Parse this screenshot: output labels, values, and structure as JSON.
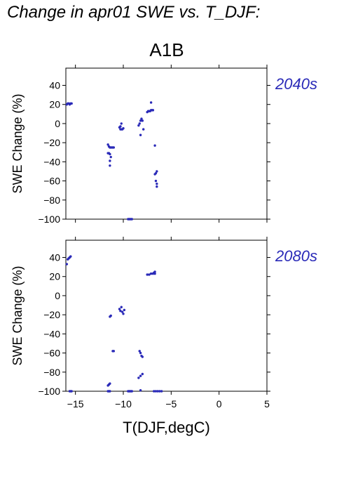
{
  "figure": {
    "title": "Change in apr01 SWE vs. T_DJF:",
    "scenario": "A1B",
    "xlabel": "T(DJF,degC)",
    "point_color": "#2a2ab8"
  },
  "chart_data": [
    {
      "type": "scatter",
      "period_label": "2040s",
      "ylabel": "SWE Change (%)",
      "xlim": [
        -16,
        5
      ],
      "ylim": [
        -100,
        58
      ],
      "xticks": [
        -15,
        -10,
        -5,
        0,
        5
      ],
      "yticks": [
        40,
        20,
        0,
        -20,
        -40,
        -60,
        -80,
        -100
      ],
      "show_x_tick_labels": false,
      "points": [
        [
          -15.9,
          20
        ],
        [
          -15.8,
          21
        ],
        [
          -15.7,
          21
        ],
        [
          -15.6,
          20
        ],
        [
          -15.5,
          21
        ],
        [
          -15.4,
          21
        ],
        [
          -11.6,
          -22
        ],
        [
          -11.5,
          -24
        ],
        [
          -11.4,
          -25
        ],
        [
          -11.3,
          -25
        ],
        [
          -11.2,
          -25
        ],
        [
          -11.1,
          -25
        ],
        [
          -11.0,
          -25
        ],
        [
          -11.6,
          -31
        ],
        [
          -11.5,
          -31
        ],
        [
          -11.4,
          -32
        ],
        [
          -11.3,
          -35
        ],
        [
          -11.4,
          -39
        ],
        [
          -11.4,
          -44
        ],
        [
          -10.4,
          -4
        ],
        [
          -10.3,
          -6
        ],
        [
          -10.2,
          -6
        ],
        [
          -10.1,
          -6
        ],
        [
          -10.0,
          -5
        ],
        [
          -10.3,
          -3
        ],
        [
          -10.2,
          0
        ],
        [
          -9.5,
          -100
        ],
        [
          -9.4,
          -100
        ],
        [
          -9.3,
          -100
        ],
        [
          -9.2,
          -100
        ],
        [
          -9.1,
          -100
        ],
        [
          -8.4,
          -2
        ],
        [
          -8.3,
          0
        ],
        [
          -8.2,
          3
        ],
        [
          -8.1,
          5
        ],
        [
          -8.0,
          3
        ],
        [
          -7.9,
          -6
        ],
        [
          -8.2,
          -12
        ],
        [
          -7.5,
          12
        ],
        [
          -7.4,
          13
        ],
        [
          -7.3,
          13
        ],
        [
          -7.2,
          13
        ],
        [
          -7.1,
          14
        ],
        [
          -7.0,
          14
        ],
        [
          -6.9,
          14
        ],
        [
          -7.1,
          22
        ],
        [
          -6.7,
          -23
        ],
        [
          -6.7,
          -53
        ],
        [
          -6.6,
          -52
        ],
        [
          -6.5,
          -50
        ],
        [
          -6.6,
          -60
        ],
        [
          -6.5,
          -63
        ],
        [
          -6.5,
          -66
        ]
      ]
    },
    {
      "type": "scatter",
      "period_label": "2080s",
      "ylabel": "SWE Change (%)",
      "xlim": [
        -16,
        5
      ],
      "ylim": [
        -100,
        58
      ],
      "xticks": [
        -15,
        -10,
        -5,
        0,
        5
      ],
      "yticks": [
        40,
        20,
        0,
        -20,
        -40,
        -60,
        -80,
        -100
      ],
      "show_x_tick_labels": true,
      "points": [
        [
          -15.9,
          33
        ],
        [
          -15.8,
          38
        ],
        [
          -15.7,
          39
        ],
        [
          -15.6,
          40
        ],
        [
          -15.5,
          41
        ],
        [
          -15.6,
          -100
        ],
        [
          -15.5,
          -100
        ],
        [
          -15.4,
          -100
        ],
        [
          -11.6,
          -94
        ],
        [
          -11.5,
          -93
        ],
        [
          -11.4,
          -92
        ],
        [
          -11.4,
          -22
        ],
        [
          -11.3,
          -21
        ],
        [
          -11.6,
          -100
        ],
        [
          -11.5,
          -100
        ],
        [
          -11.4,
          -100
        ],
        [
          -11.1,
          -58
        ],
        [
          -11.0,
          -58
        ],
        [
          -10.4,
          -14
        ],
        [
          -10.3,
          -16
        ],
        [
          -10.2,
          -12
        ],
        [
          -10.1,
          -17
        ],
        [
          -10.0,
          -19
        ],
        [
          -9.9,
          -15
        ],
        [
          -9.5,
          -100
        ],
        [
          -9.4,
          -100
        ],
        [
          -9.3,
          -100
        ],
        [
          -9.2,
          -100
        ],
        [
          -9.1,
          -100
        ],
        [
          -8.4,
          -86
        ],
        [
          -8.2,
          -84
        ],
        [
          -8.0,
          -82
        ],
        [
          -8.3,
          -58
        ],
        [
          -8.2,
          -60
        ],
        [
          -8.1,
          -63
        ],
        [
          -8.0,
          -64
        ],
        [
          -8.2,
          -99
        ],
        [
          -7.5,
          22
        ],
        [
          -7.3,
          22
        ],
        [
          -7.1,
          23
        ],
        [
          -6.9,
          23
        ],
        [
          -6.8,
          24
        ],
        [
          -6.7,
          25
        ],
        [
          -6.7,
          23
        ],
        [
          -6.8,
          -100
        ],
        [
          -6.6,
          -100
        ],
        [
          -6.4,
          -100
        ],
        [
          -6.2,
          -100
        ],
        [
          -6.0,
          -100
        ]
      ]
    }
  ]
}
